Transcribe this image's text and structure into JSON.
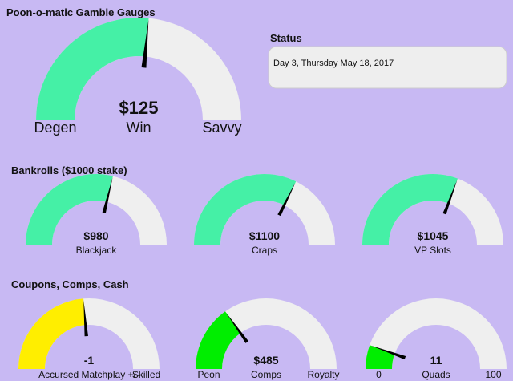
{
  "header": {
    "title": "Poon-o-matic Gamble Gauges"
  },
  "status": {
    "title": "Status",
    "text": "Day 3, Thursday May 18, 2017"
  },
  "main_gauge": {
    "value": 125,
    "value_label": "$125",
    "range": [
      -2000,
      2000
    ],
    "label": "Win",
    "range_labels": [
      "Degen",
      "Savvy"
    ],
    "color": "#45f0a6"
  },
  "sections": [
    {
      "title": "Bankrolls ($1000 stake)",
      "gauges": [
        {
          "value": 980,
          "value_label": "$980",
          "range": [
            0,
            1700
          ],
          "label": "Blackjack",
          "color": "#45f0a6"
        },
        {
          "value": 1100,
          "value_label": "$1100",
          "range": [
            0,
            1700
          ],
          "label": "Craps",
          "color": "#45f0a6"
        },
        {
          "value": 1045,
          "value_label": "$1045",
          "range": [
            0,
            1700
          ],
          "label": "VP Slots",
          "color": "#45f0a6"
        }
      ]
    },
    {
      "title": "Coupons, Comps, Cash",
      "gauges": [
        {
          "value": -1,
          "range": [
            -20,
            20
          ],
          "label": "Accursed Matchplay +/-",
          "range_labels": [
            null,
            "Skilled"
          ],
          "color": "#ffee00"
        },
        {
          "value": 485,
          "value_label": "$485",
          "range": [
            0,
            1600
          ],
          "label": "Comps",
          "range_labels": [
            "Peon",
            "Royalty"
          ],
          "color": "#00ee00"
        },
        {
          "value": 11,
          "range": [
            0,
            100
          ],
          "label": "Quads",
          "print_range": true,
          "color": "#00ee00"
        }
      ]
    }
  ]
}
